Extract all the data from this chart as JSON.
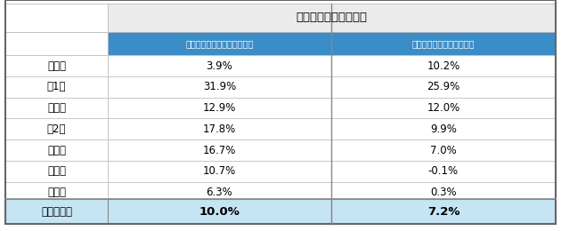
{
  "title": "級別志願者数の増減率",
  "header_col1": "志願者数（小学生）　増減率",
  "header_col2": "志願者数（全体）　増減率",
  "rows": [
    {
      "label": "１　級",
      "val1": "3.9%",
      "val2": "10.2%"
    },
    {
      "label": "準1級",
      "val1": "31.9%",
      "val2": "25.9%"
    },
    {
      "label": "２　級",
      "val1": "12.9%",
      "val2": "12.0%"
    },
    {
      "label": "準2級",
      "val1": "17.8%",
      "val2": "9.9%"
    },
    {
      "label": "３　級",
      "val1": "16.7%",
      "val2": "7.0%"
    },
    {
      "label": "４　級",
      "val1": "10.7%",
      "val2": "-0.1%"
    },
    {
      "label": "５　級",
      "val1": "6.3%",
      "val2": "0.3%"
    }
  ],
  "footer_label": "全体増加率",
  "footer_val1": "10.0%",
  "footer_val2": "7.2%",
  "header_bg": "#3B8DC8",
  "header_text_color": "#FFFFFF",
  "title_bg": "#EBEBEB",
  "title_text_color": "#000000",
  "row_bg": "#FFFFFF",
  "footer_bg": "#C5E5F5",
  "footer_text_color": "#000000",
  "border_color_inner": "#BBBBBB",
  "border_color_outer": "#666666",
  "border_color_heavy": "#888888"
}
